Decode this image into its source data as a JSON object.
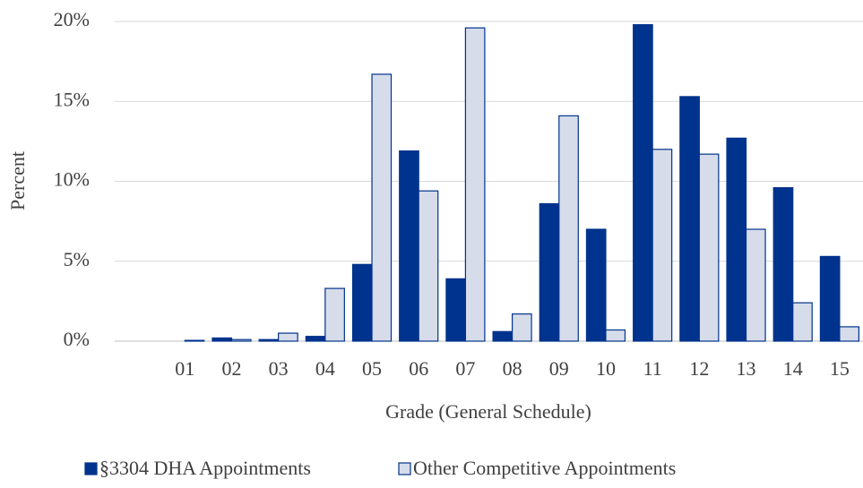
{
  "chart_data": {
    "type": "bar",
    "x_label": "Grade (General Schedule)",
    "y_label": "Percent",
    "categories": [
      null,
      "01",
      "02",
      "03",
      "04",
      "05",
      "06",
      "07",
      "08",
      "09",
      "10",
      "11",
      "12",
      "13",
      "14",
      "15"
    ],
    "series": [
      {
        "name": "§3304 DHA Appointments",
        "color": "#00338d",
        "values": [
          null,
          0,
          0.2,
          0.1,
          0.3,
          4.8,
          11.9,
          3.9,
          0.6,
          8.6,
          7.0,
          19.8,
          15.3,
          12.7,
          9.6,
          5.3
        ]
      },
      {
        "name": "Other Competitive Appointments",
        "color": "#d6dcea",
        "values": [
          null,
          0.05,
          0.1,
          0.5,
          3.3,
          16.7,
          9.4,
          19.6,
          1.7,
          14.1,
          0.7,
          12.0,
          11.7,
          7.0,
          2.4,
          0.9
        ]
      }
    ],
    "ylim": [
      0,
      20
    ],
    "yticks": [
      {
        "value": 0,
        "label": "0%"
      },
      {
        "value": 5,
        "label": "5%"
      },
      {
        "value": 10,
        "label": "10%"
      },
      {
        "value": 15,
        "label": "15%"
      },
      {
        "value": 20,
        "label": "20%"
      }
    ],
    "grid": true
  }
}
